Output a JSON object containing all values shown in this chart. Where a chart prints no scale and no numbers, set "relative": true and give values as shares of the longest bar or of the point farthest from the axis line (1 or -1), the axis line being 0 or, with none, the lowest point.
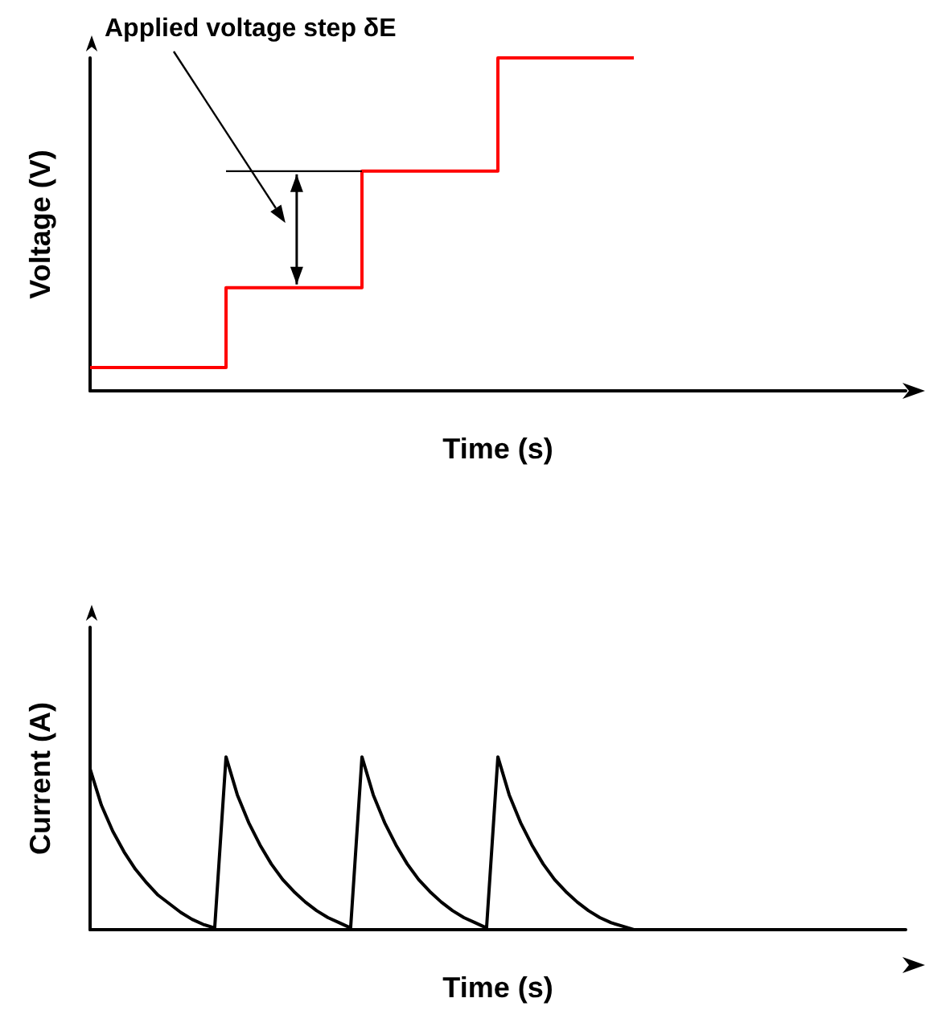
{
  "chart_data": [
    {
      "type": "step",
      "relative": true,
      "xlabel": "Time (s)",
      "ylabel": "Voltage (V)",
      "annotations": [
        "Applied voltage step δE"
      ],
      "categories": [
        null,
        null,
        null,
        null,
        null,
        null,
        null
      ],
      "grid": false,
      "marker": "none",
      "line_style": "solid",
      "ref_lines": [
        {
          "axis": "y",
          "value": 0.66,
          "color": "#000000"
        }
      ],
      "series": [
        {
          "color": "#ff0000",
          "values": [
            0.07,
            0.07,
            0.31,
            0.66,
            1,
            null,
            null
          ]
        }
      ]
    },
    {
      "type": "line",
      "relative": true,
      "xlabel": "Time (s)",
      "ylabel": "Current (A)",
      "categories": [
        null,
        null,
        null,
        null,
        null,
        null,
        null,
        null,
        null,
        null,
        null,
        null,
        null,
        null,
        null,
        null,
        null,
        null,
        null,
        null,
        null,
        null,
        null,
        null,
        null,
        null,
        null,
        null,
        null,
        null,
        null,
        null,
        null,
        null,
        null,
        null,
        null,
        null,
        null,
        null,
        null,
        null,
        null,
        null,
        null,
        null,
        null,
        null,
        null,
        null,
        null,
        null,
        null,
        null,
        null,
        null,
        null,
        null,
        null,
        null,
        null,
        null,
        null,
        null,
        null,
        null,
        null,
        null,
        null,
        null,
        null,
        null,
        null
      ],
      "grid": false,
      "marker": "none",
      "line_style": "solid",
      "series": [
        {
          "color": "#000000",
          "values": [
            0.93,
            0.72,
            0.57,
            0.45,
            0.35,
            0.27,
            0.2,
            0.15,
            0.1,
            0.06,
            0.03,
            0.01,
            1,
            0.78,
            0.62,
            0.49,
            0.38,
            0.29,
            0.22,
            0.16,
            0.11,
            0.07,
            0.04,
            0.01,
            1,
            0.78,
            0.62,
            0.49,
            0.38,
            0.29,
            0.22,
            0.16,
            0.11,
            0.07,
            0.04,
            0.01,
            1,
            0.78,
            0.62,
            0.49,
            0.38,
            0.29,
            0.22,
            0.16,
            0.11,
            0.07,
            0.04,
            0.02,
            0,
            null,
            null,
            null,
            null,
            null,
            null,
            null,
            null,
            null,
            null,
            null,
            null,
            null,
            null,
            null,
            null,
            null,
            null,
            null,
            null,
            null,
            null,
            null,
            null
          ]
        }
      ]
    }
  ]
}
